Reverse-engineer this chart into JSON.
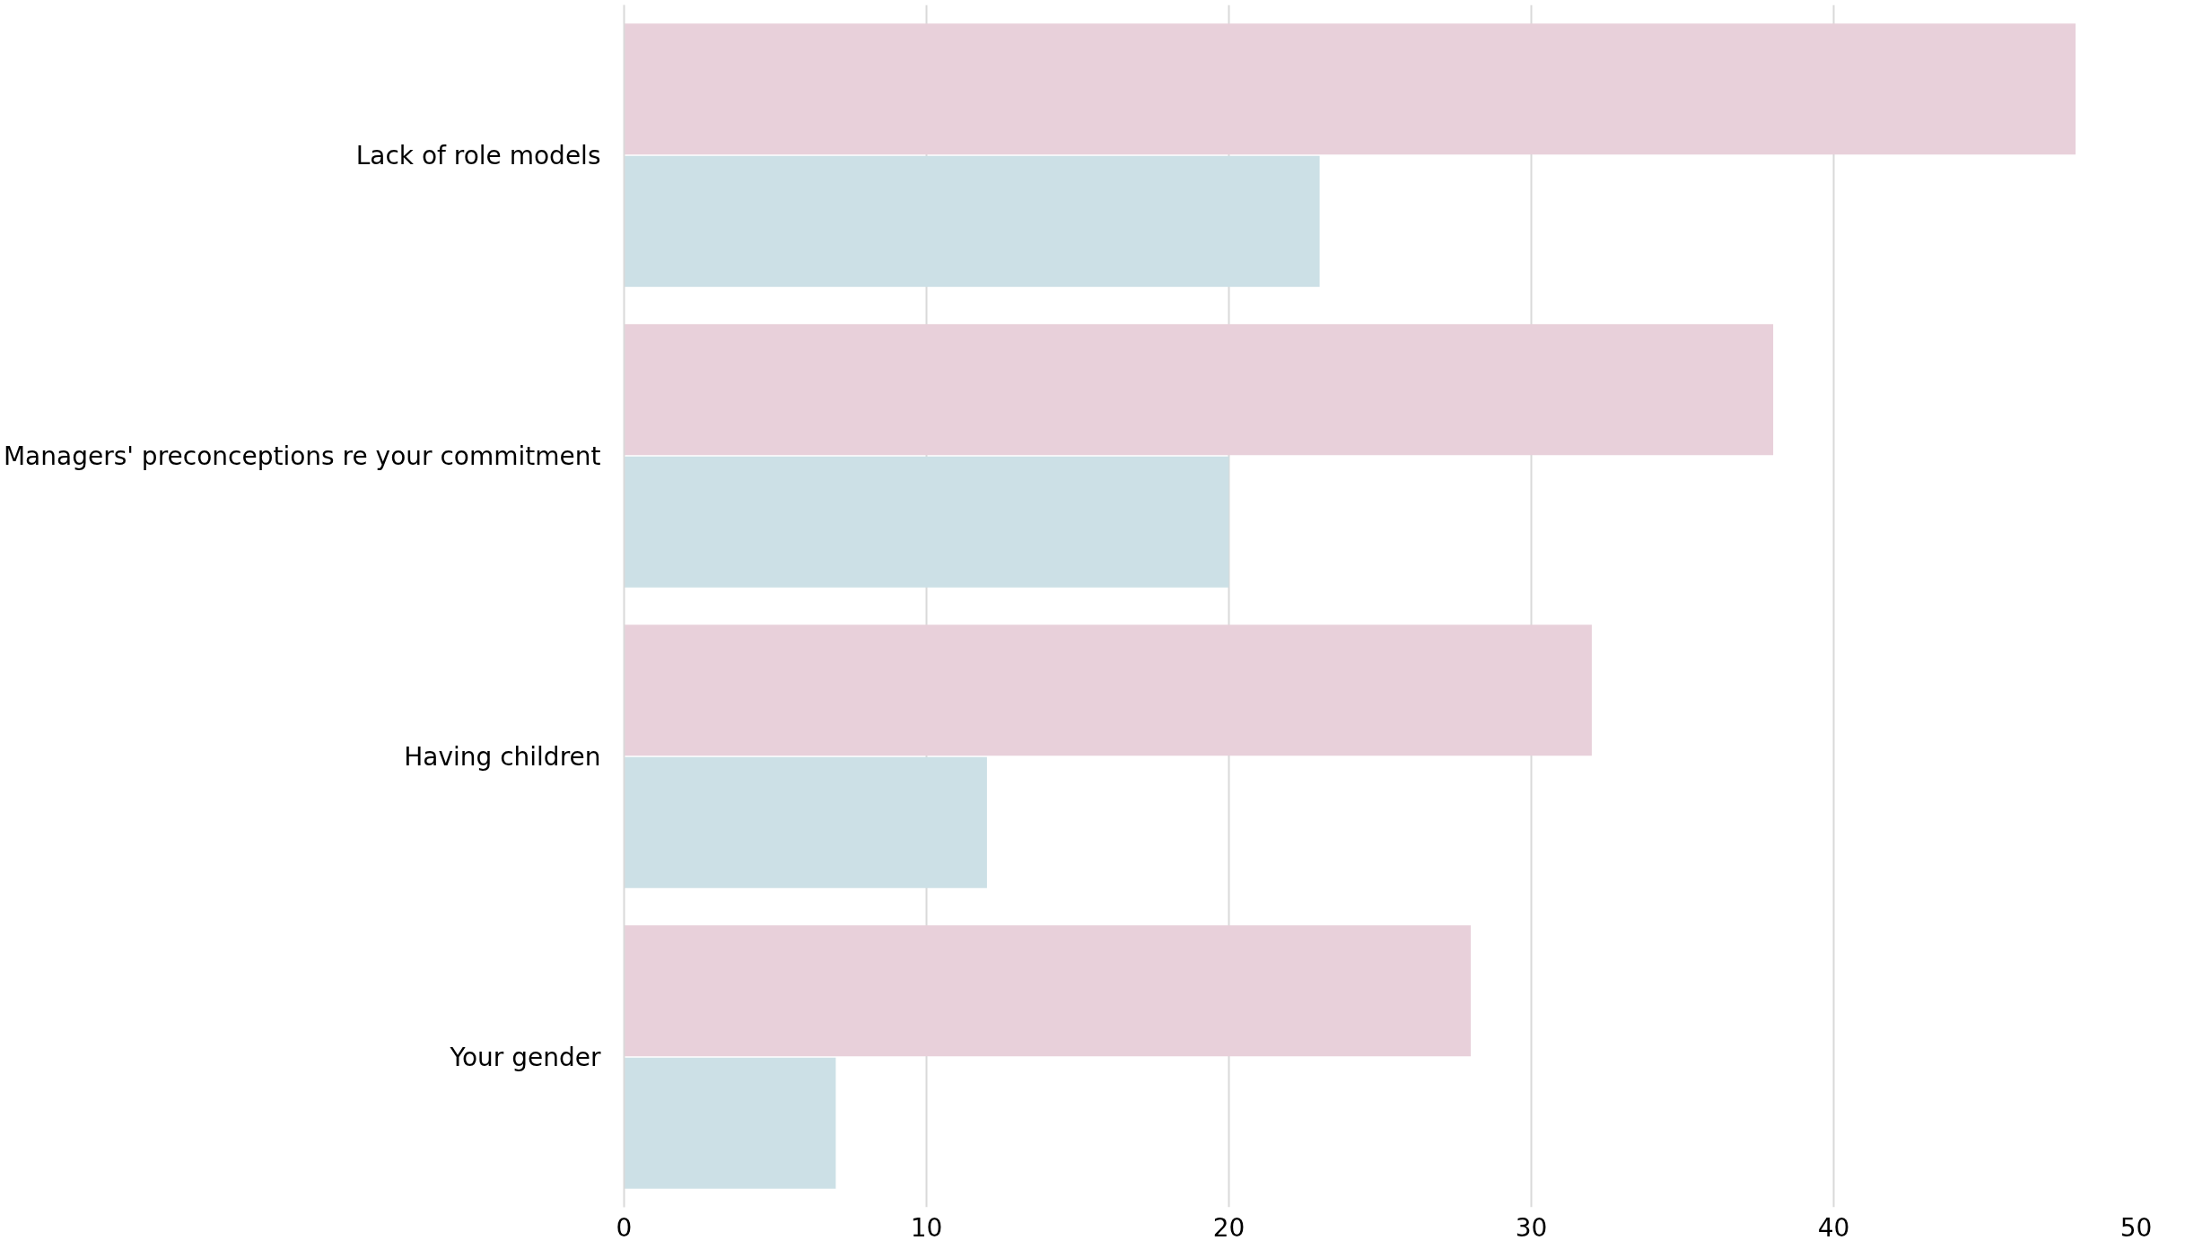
{
  "chart_data": {
    "type": "bar",
    "orientation": "horizontal",
    "categories": [
      "Lack of role models",
      "Managers' preconceptions re your commitment",
      "Having children",
      "Your gender"
    ],
    "series": [
      {
        "color": "#e8d0da",
        "values": [
          48,
          38,
          32,
          28
        ]
      },
      {
        "color": "#cce0e6",
        "values": [
          23,
          20,
          12,
          7
        ]
      }
    ],
    "xlim": [
      0,
      50
    ],
    "xticks": [
      0,
      10,
      20,
      30,
      40,
      50
    ],
    "grid": "x"
  }
}
